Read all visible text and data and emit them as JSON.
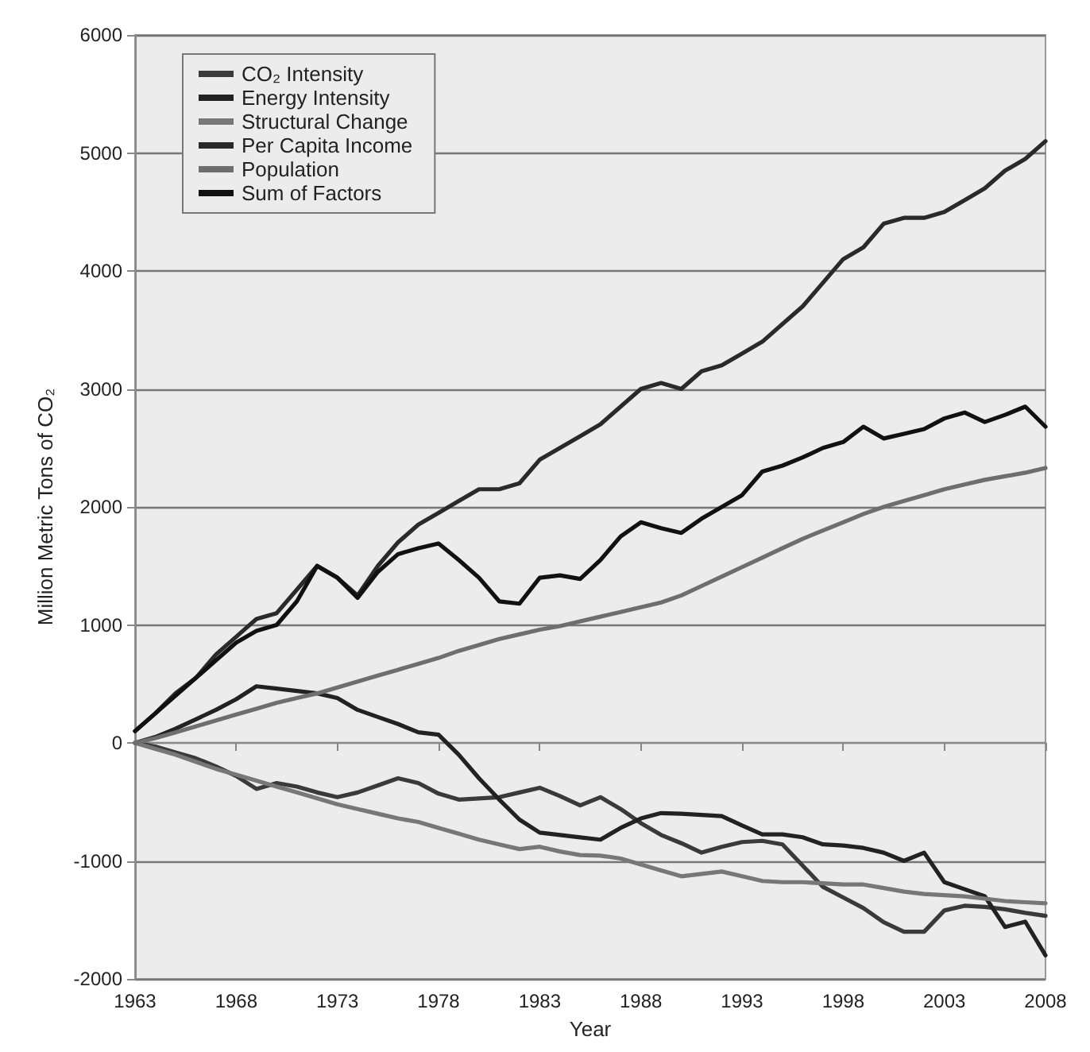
{
  "chart_data": {
    "type": "line",
    "xlabel": "Year",
    "ylabel": "Million Metric Tons of CO₂",
    "x": [
      1963,
      1964,
      1965,
      1966,
      1967,
      1968,
      1969,
      1970,
      1971,
      1972,
      1973,
      1974,
      1975,
      1976,
      1977,
      1978,
      1979,
      1980,
      1981,
      1982,
      1983,
      1984,
      1985,
      1986,
      1987,
      1988,
      1989,
      1990,
      1991,
      1992,
      1993,
      1994,
      1995,
      1996,
      1997,
      1998,
      1999,
      2000,
      2001,
      2002,
      2003,
      2004,
      2005,
      2006,
      2007,
      2008
    ],
    "xlim": [
      1963,
      2008
    ],
    "xticks": [
      1963,
      1968,
      1973,
      1978,
      1983,
      1988,
      1993,
      1998,
      2003,
      2008
    ],
    "ylim": [
      -2000,
      6000
    ],
    "yticks": [
      -2000,
      -1000,
      0,
      1000,
      2000,
      3000,
      4000,
      5000,
      6000
    ],
    "grid": "y",
    "legend": "top left",
    "marker": "none",
    "line_style": "solid",
    "series": [
      {
        "name": "CO₂ Intensity",
        "color": "#3a3a3a",
        "values": [
          0,
          -30,
          -80,
          -130,
          -200,
          -280,
          -390,
          -340,
          -370,
          -420,
          -460,
          -420,
          -360,
          -300,
          -340,
          -430,
          -480,
          -470,
          -460,
          -420,
          -380,
          -450,
          -530,
          -460,
          -560,
          -680,
          -780,
          -850,
          -930,
          -880,
          -840,
          -830,
          -860,
          -1040,
          -1220,
          -1310,
          -1400,
          -1520,
          -1600,
          -1600,
          -1420,
          -1380,
          -1390,
          -1410,
          -1440,
          -1465
        ]
      },
      {
        "name": "Energy Intensity",
        "color": "#222222",
        "values": [
          0,
          50,
          120,
          200,
          280,
          370,
          480,
          460,
          440,
          420,
          380,
          280,
          220,
          160,
          90,
          70,
          -100,
          -300,
          -480,
          -650,
          -760,
          -780,
          -800,
          -820,
          -720,
          -640,
          -595,
          -600,
          -610,
          -620,
          -700,
          -775,
          -775,
          -800,
          -860,
          -870,
          -890,
          -930,
          -1000,
          -930,
          -1180,
          -1240,
          -1300,
          -1560,
          -1515,
          -1800
        ]
      },
      {
        "name": "Structural Change",
        "color": "#777777",
        "values": [
          0,
          -50,
          -100,
          -160,
          -220,
          -270,
          -320,
          -370,
          -420,
          -470,
          -520,
          -560,
          -600,
          -640,
          -670,
          -720,
          -770,
          -820,
          -860,
          -900,
          -880,
          -920,
          -950,
          -955,
          -980,
          -1030,
          -1080,
          -1130,
          -1110,
          -1090,
          -1130,
          -1170,
          -1180,
          -1180,
          -1190,
          -1200,
          -1200,
          -1230,
          -1260,
          -1280,
          -1290,
          -1300,
          -1320,
          -1340,
          -1350,
          -1360
        ]
      },
      {
        "name": "Per Capita Income",
        "color": "#2a2a2a",
        "values": [
          100,
          250,
          420,
          550,
          750,
          900,
          1050,
          1100,
          1300,
          1500,
          1400,
          1250,
          1500,
          1700,
          1850,
          1950,
          2050,
          2150,
          2150,
          2200,
          2400,
          2500,
          2600,
          2700,
          2850,
          3000,
          3050,
          3000,
          3150,
          3200,
          3300,
          3400,
          3550,
          3700,
          3900,
          4100,
          4200,
          4400,
          4450,
          4450,
          4500,
          4600,
          4700,
          4850,
          4950,
          5100
        ]
      },
      {
        "name": "Population",
        "color": "#6e6e6e",
        "values": [
          0,
          40,
          90,
          140,
          190,
          240,
          290,
          340,
          380,
          420,
          470,
          520,
          570,
          620,
          670,
          720,
          780,
          830,
          880,
          920,
          960,
          990,
          1030,
          1070,
          1110,
          1150,
          1190,
          1250,
          1330,
          1410,
          1490,
          1570,
          1650,
          1730,
          1800,
          1870,
          1940,
          2000,
          2050,
          2100,
          2150,
          2190,
          2230,
          2260,
          2290,
          2330
        ]
      },
      {
        "name": "Sum of Factors",
        "color": "#111111",
        "values": [
          100,
          250,
          400,
          550,
          700,
          850,
          950,
          1000,
          1200,
          1500,
          1400,
          1230,
          1450,
          1600,
          1650,
          1690,
          1550,
          1400,
          1200,
          1180,
          1400,
          1420,
          1390,
          1550,
          1750,
          1870,
          1820,
          1780,
          1900,
          2000,
          2100,
          2300,
          2350,
          2420,
          2500,
          2550,
          2680,
          2580,
          2620,
          2660,
          2750,
          2800,
          2720,
          2780,
          2850,
          2680
        ]
      }
    ]
  }
}
